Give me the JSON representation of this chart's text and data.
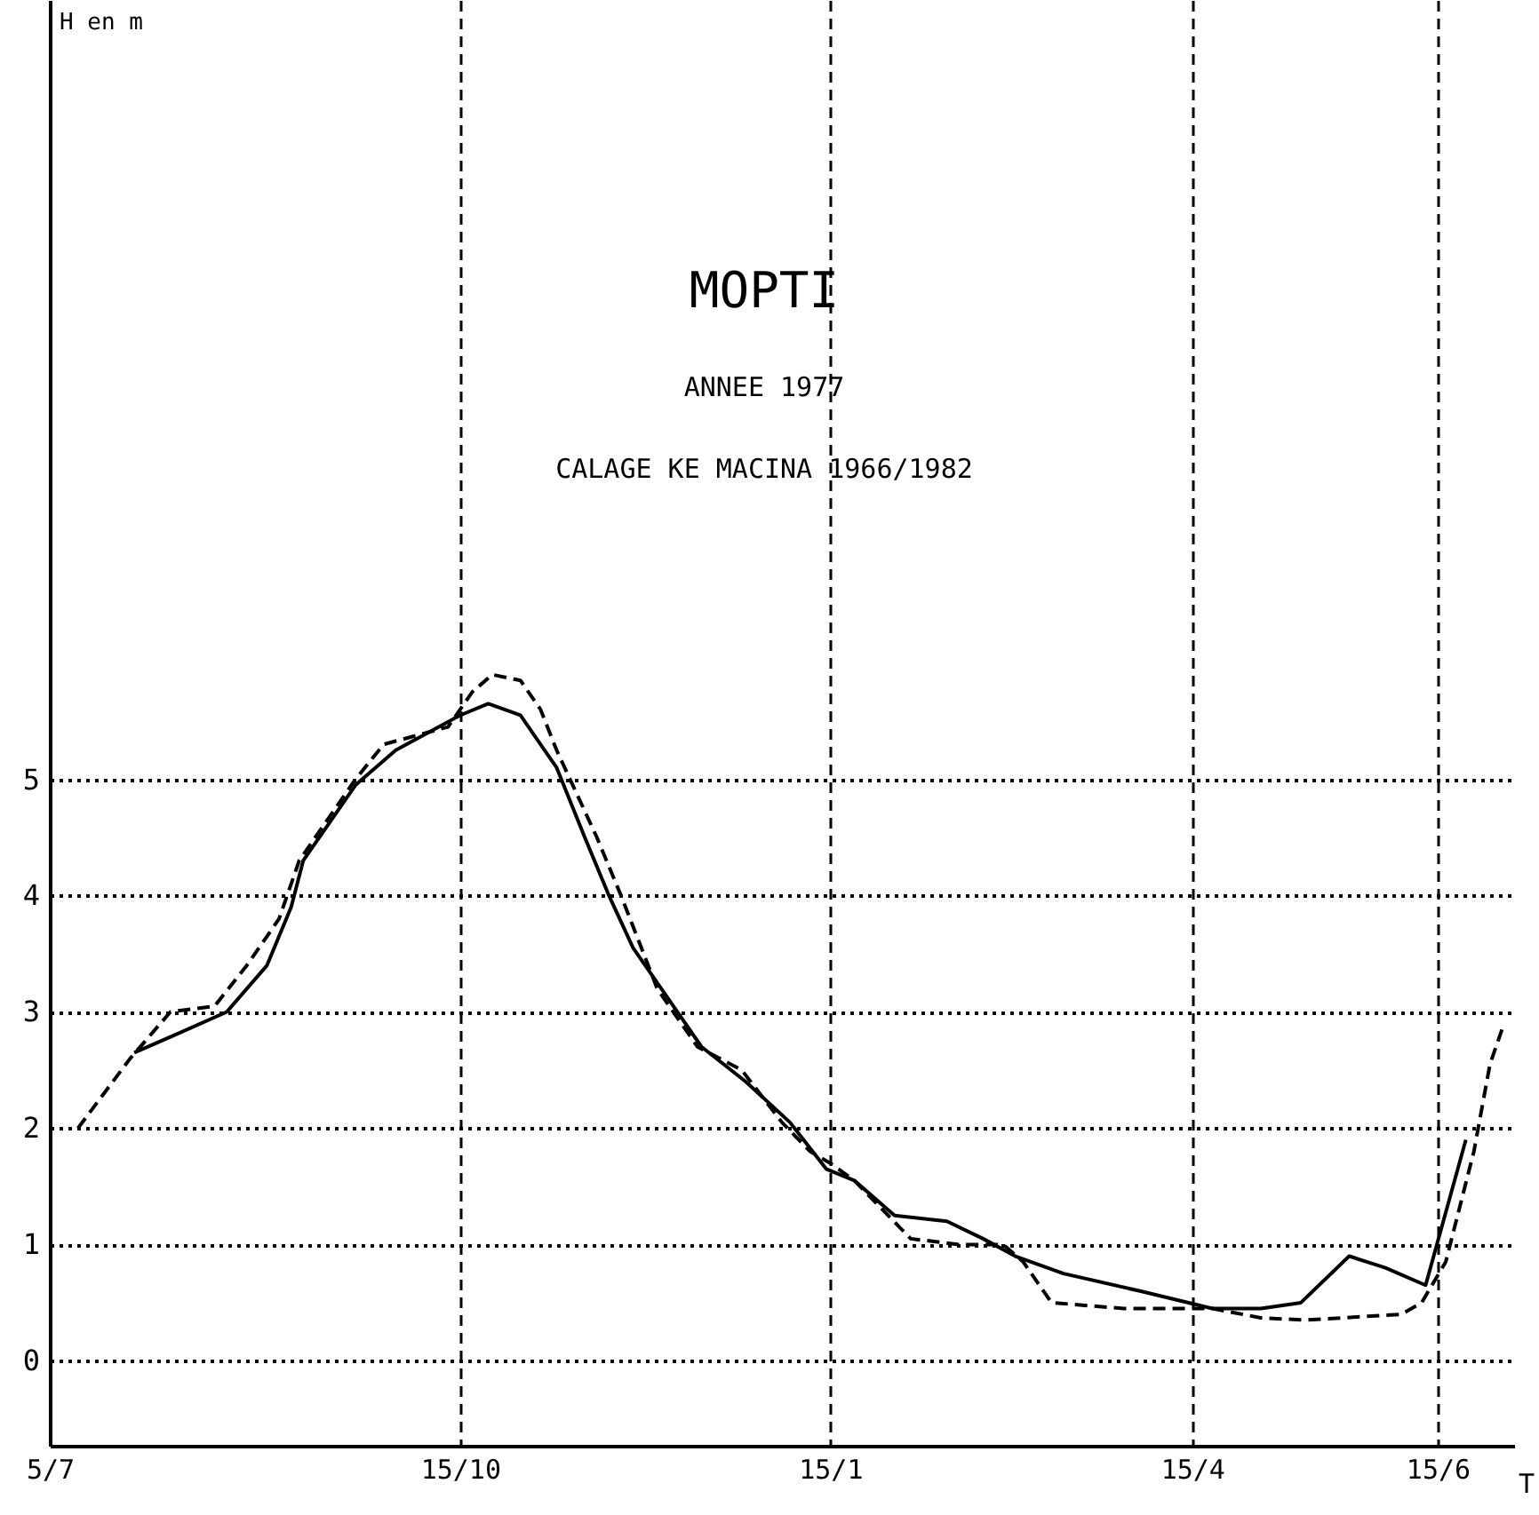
{
  "chart_data": {
    "type": "line",
    "title": "MOPTI",
    "subtitle": "ANNEE 1977",
    "annotations": [
      "CALAGE KE MACINA 1966/1982"
    ],
    "xlabel": "T",
    "ylabel": "H en m",
    "xlim": [
      "1977-07-05",
      "1978-07-04"
    ],
    "xticks": [
      {
        "value": "1977-07-05",
        "label": "5/7"
      },
      {
        "value": "1977-10-15",
        "label": "15/10"
      },
      {
        "value": "1978-01-15",
        "label": "15/1"
      },
      {
        "value": "1978-04-15",
        "label": "15/4"
      },
      {
        "value": "1978-06-15",
        "label": "15/6"
      }
    ],
    "ylim": [
      -0.73,
      11.7
    ],
    "yticks": [
      0,
      1,
      2,
      3,
      4,
      5
    ],
    "grid": true,
    "series": [
      {
        "color": "#000000",
        "line_style": "solid",
        "x": [
          "1977-07-26",
          "1977-08-05",
          "1977-08-18",
          "1977-08-28",
          "1977-09-03",
          "1977-09-06",
          "1977-09-13",
          "1977-09-19",
          "1977-09-29",
          "1977-10-15",
          "1977-10-22",
          "1977-10-30",
          "1977-11-05",
          "1977-11-08",
          "1977-11-15",
          "1977-11-21",
          "1977-11-27",
          "1977-12-08",
          "1977-12-14",
          "1977-12-25",
          "1978-01-05",
          "1978-01-14",
          "1978-01-21",
          "1978-01-31",
          "1978-02-13",
          "1978-02-22",
          "1978-03-02",
          "1978-03-14",
          "1978-04-02",
          "1978-04-20",
          "1978-05-02",
          "1978-05-12",
          "1978-05-24",
          "1978-06-02",
          "1978-06-12",
          "1978-06-22"
        ],
        "values": [
          2.65,
          2.8,
          3.0,
          3.4,
          3.9,
          4.3,
          4.65,
          4.95,
          5.25,
          5.55,
          5.65,
          5.55,
          5.25,
          5.1,
          4.5,
          4.0,
          3.55,
          3.0,
          2.7,
          2.4,
          2.05,
          1.65,
          1.55,
          1.25,
          1.2,
          1.05,
          0.9,
          0.75,
          0.6,
          0.45,
          0.45,
          0.5,
          0.9,
          0.8,
          0.65,
          1.9
        ]
      },
      {
        "color": "#000000",
        "line_style": "dashed",
        "x": [
          "1977-07-12",
          "1977-07-25",
          "1977-08-04",
          "1977-08-15",
          "1977-08-23",
          "1977-08-31",
          "1977-09-05",
          "1977-09-19",
          "1977-09-26",
          "1977-10-12",
          "1977-10-18",
          "1977-10-23",
          "1977-10-30",
          "1977-11-04",
          "1977-11-08",
          "1977-11-18",
          "1977-11-24",
          "1977-12-03",
          "1977-12-13",
          "1977-12-24",
          "1978-01-03",
          "1978-01-10",
          "1978-01-15",
          "1978-01-21",
          "1978-02-04",
          "1978-02-16",
          "1978-02-27",
          "1978-03-04",
          "1978-03-11",
          "1978-03-29",
          "1978-04-20",
          "1978-05-02",
          "1978-05-13",
          "1978-06-06",
          "1978-06-11",
          "1978-06-17",
          "1978-06-24",
          "1978-06-28",
          "1978-07-01"
        ],
        "values": [
          2.0,
          2.6,
          3.0,
          3.05,
          3.4,
          3.8,
          4.3,
          5.0,
          5.3,
          5.45,
          5.75,
          5.9,
          5.85,
          5.6,
          5.25,
          4.5,
          4.0,
          3.2,
          2.7,
          2.5,
          2.05,
          1.8,
          1.7,
          1.55,
          1.05,
          1.0,
          1.0,
          0.85,
          0.5,
          0.45,
          0.45,
          0.37,
          0.35,
          0.4,
          0.5,
          0.85,
          1.8,
          2.55,
          2.85
        ]
      }
    ]
  }
}
